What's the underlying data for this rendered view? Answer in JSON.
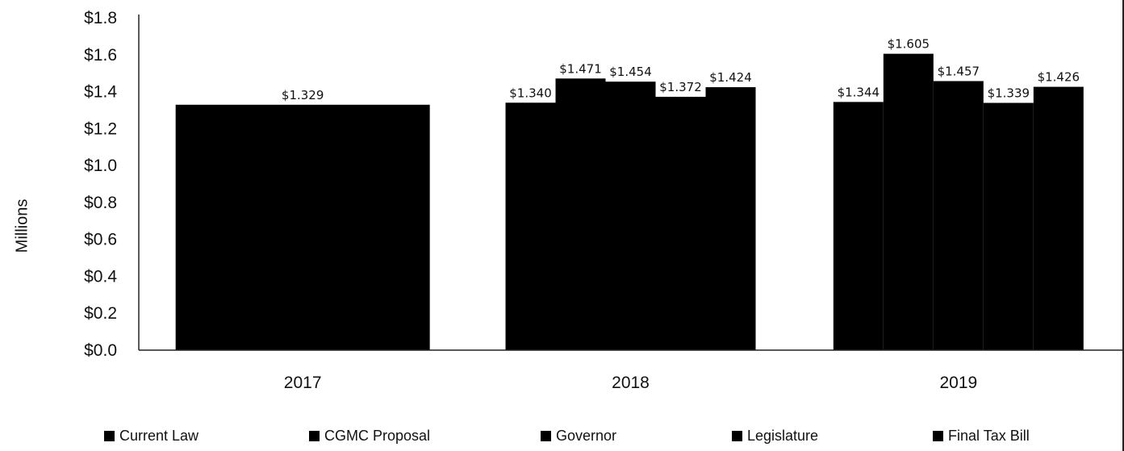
{
  "chart_data": {
    "type": "bar",
    "title": "",
    "xlabel": "",
    "ylabel": "Millions",
    "ylim": [
      0,
      1.8
    ],
    "yticks": [
      "$0.0",
      "$0.2",
      "$0.4",
      "$0.6",
      "$0.8",
      "$1.0",
      "$1.2",
      "$1.4",
      "$1.6",
      "$1.8"
    ],
    "ytick_values": [
      0,
      0.2,
      0.4,
      0.6,
      0.8,
      1.0,
      1.2,
      1.4,
      1.6,
      1.8
    ],
    "categories": [
      "2017",
      "2018",
      "2019"
    ],
    "series": [
      {
        "name": "Current Law",
        "values": [
          1.329,
          1.34,
          1.344
        ],
        "labels": [
          "$1.329",
          "$1.340",
          "$1.344"
        ]
      },
      {
        "name": "CGMC Proposal",
        "values": [
          null,
          1.471,
          1.605
        ],
        "labels": [
          "",
          "$1.471",
          "$1.605"
        ]
      },
      {
        "name": "Governor",
        "values": [
          null,
          1.454,
          1.457
        ],
        "labels": [
          "",
          "$1.454",
          "$1.457"
        ]
      },
      {
        "name": "Legislature",
        "values": [
          null,
          1.372,
          1.339
        ],
        "labels": [
          "",
          "$1.372",
          "$1.339"
        ]
      },
      {
        "name": "Final Tax Bill",
        "values": [
          null,
          1.424,
          1.426
        ],
        "labels": [
          "",
          "$1.424",
          "$1.426"
        ]
      }
    ],
    "legend_placement": "bottom",
    "grid": false,
    "bar_color": "#000000"
  }
}
